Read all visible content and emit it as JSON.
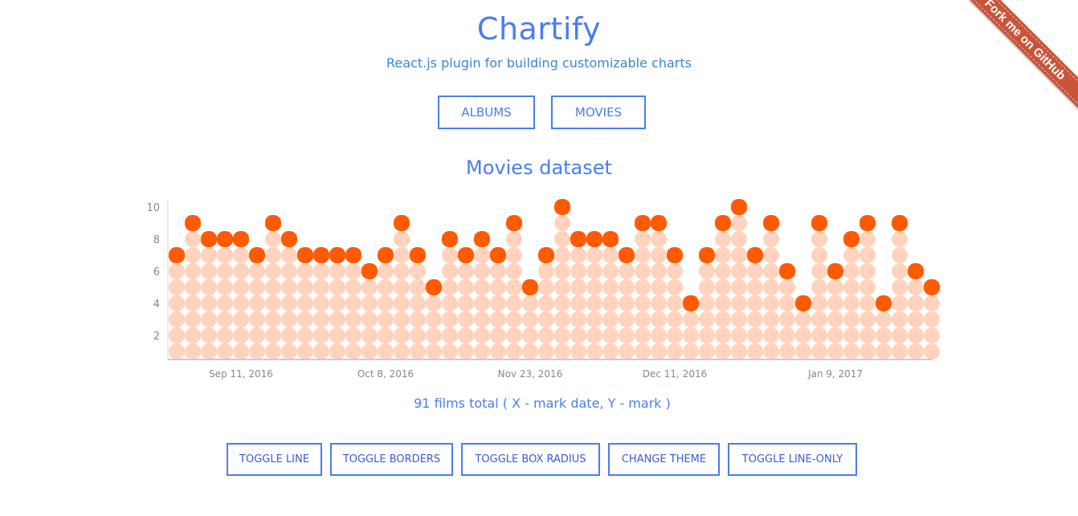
{
  "header": {
    "title": "Chartify",
    "subtitle": "React.js plugin for building customizable charts"
  },
  "dataset_buttons": [
    "ALBUMS",
    "MOVIES"
  ],
  "section_title": "Movies dataset",
  "caption": "91 films total ( X - mark date, Y - mark )",
  "controls": [
    "TOGGLE LINE",
    "TOGGLE BORDERS",
    "TOGGLE BOX RADIUS",
    "CHANGE THEME",
    "TOGGLE LINE-ONLY"
  ],
  "ribbon": "Fork me on GitHub",
  "colors": {
    "accent": "#4a7df0",
    "point_top": "#ff5a00",
    "point_fill": "#ffd3bd",
    "ribbon": "#c8553a"
  },
  "chart_data": {
    "type": "bar",
    "style": "stacked dots, orange top dot marks the value",
    "title": "Movies dataset",
    "xlabel": "mark date",
    "ylabel": "mark",
    "ylim": [
      0,
      10
    ],
    "y_ticks": [
      "2",
      "4",
      "6",
      "8",
      "10"
    ],
    "x_tick_labels": [
      "Sep 11, 2016",
      "Oct 8, 2016",
      "Nov 23, 2016",
      "Dec 11, 2016",
      "Jan 9, 2017"
    ],
    "x_tick_indices": [
      4,
      13,
      22,
      31,
      41
    ],
    "values": [
      7,
      9,
      8,
      8,
      8,
      7,
      9,
      8,
      7,
      7,
      7,
      7,
      6,
      7,
      9,
      7,
      5,
      8,
      7,
      8,
      7,
      9,
      5,
      7,
      10,
      8,
      8,
      8,
      7,
      9,
      9,
      7,
      4,
      7,
      9,
      10,
      7,
      9,
      6,
      4,
      9,
      6,
      8,
      9,
      4,
      9,
      6,
      5
    ]
  }
}
